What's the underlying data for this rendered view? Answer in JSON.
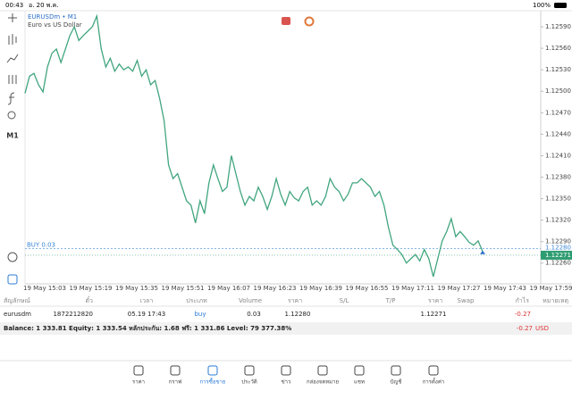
{
  "status_bar": {
    "time": "00:43",
    "date": "อ. 20 พ.ค.",
    "battery": "100%"
  },
  "chart_data": {
    "type": "line",
    "symbol": "EURUSDm • M1",
    "description": "Euro vs US Dollar",
    "timeframe": "M1",
    "color": "#41a57f",
    "values": [
      1.12497,
      1.12521,
      1.12525,
      1.12509,
      1.12499,
      1.12534,
      1.12553,
      1.12559,
      1.1254,
      1.12559,
      1.12578,
      1.1259,
      1.12571,
      1.12578,
      1.12584,
      1.1259,
      1.12605,
      1.12559,
      1.12534,
      1.12546,
      1.12528,
      1.12538,
      1.1253,
      1.12534,
      1.12528,
      1.12543,
      1.12521,
      1.1253,
      1.12509,
      1.12515,
      1.1249,
      1.12459,
      1.12397,
      1.12378,
      1.12385,
      1.12366,
      1.12347,
      1.12341,
      1.12316,
      1.12347,
      1.12329,
      1.12372,
      1.12397,
      1.12378,
      1.1236,
      1.12366,
      1.1241,
      1.12385,
      1.1236,
      1.12341,
      1.12353,
      1.12347,
      1.12366,
      1.12353,
      1.12335,
      1.12353,
      1.12378,
      1.12356,
      1.12341,
      1.1236,
      1.12351,
      1.12347,
      1.1236,
      1.12366,
      1.12341,
      1.12347,
      1.12341,
      1.12353,
      1.12378,
      1.12366,
      1.1236,
      1.12347,
      1.12356,
      1.12372,
      1.12372,
      1.12378,
      1.12372,
      1.12366,
      1.12353,
      1.1236,
      1.12341,
      1.1231,
      1.12285,
      1.12279,
      1.12272,
      1.1226,
      1.12266,
      1.12272,
      1.12263,
      1.12279,
      1.12266,
      1.12241,
      1.12266,
      1.12291,
      1.12304,
      1.12322,
      1.12297,
      1.12304,
      1.12297,
      1.12289,
      1.12285,
      1.12291,
      1.12276
    ],
    "ylim": [
      1.12231,
      1.1261
    ],
    "yticks": [
      {
        "value": 1.1259,
        "label": "1.12590"
      },
      {
        "value": 1.1256,
        "label": "1.12560"
      },
      {
        "value": 1.1253,
        "label": "1.12530"
      },
      {
        "value": 1.125,
        "label": "1.12500"
      },
      {
        "value": 1.1247,
        "label": "1.12470"
      },
      {
        "value": 1.1244,
        "label": "1.12440"
      },
      {
        "value": 1.1241,
        "label": "1.12410"
      },
      {
        "value": 1.1238,
        "label": "1.12380"
      },
      {
        "value": 1.1235,
        "label": "1.12350"
      },
      {
        "value": 1.1232,
        "label": "1.12320"
      },
      {
        "value": 1.1229,
        "label": "1.12290"
      },
      {
        "value": 1.1226,
        "label": "1.12260"
      }
    ],
    "xtick_labels": [
      "19 May 15:03",
      "19 May 15:19",
      "19 May 15:35",
      "19 May 15:51",
      "19 May 16:07",
      "19 May 16:23",
      "19 May 16:39",
      "19 May 16:55",
      "19 May 17:11",
      "19 May 17:27",
      "19 May 17:43",
      "19 May 17:59"
    ],
    "buy_line": {
      "label": "BUY 0.03",
      "value": 1.1228,
      "value_label": "1.12280"
    },
    "bid": {
      "value": 1.12271,
      "label": "1.12271"
    }
  },
  "table": {
    "headers": [
      "สัญลักษณ์",
      "ตั๋ว",
      "เวลา",
      "ประเภท",
      "Volume",
      "ราคา",
      "S/L",
      "T/P",
      "ราคา",
      "Swap",
      "กำไร",
      "หมายเหตุ"
    ],
    "row": {
      "symbol": "eurusdm",
      "ticket": "1872212820",
      "time": "05.19 17:43",
      "type": "buy",
      "volume": "0.03",
      "price": "1.12280",
      "current_price": "1.12271",
      "profit": "-0.27"
    }
  },
  "balance_bar": {
    "text": "Balance: 1 333.81 Equity: 1 333.54 หลักประกัน: 1.68 ฟรี: 1 331.86 Level: 79 377.38%",
    "profit": "-0.27",
    "currency": "USD"
  },
  "nav": {
    "items": [
      "ราคา",
      "กราฟ",
      "การซื้อขาย",
      "ประวัติ",
      "ข่าว",
      "กล่องจดหมาย",
      "แชท",
      "บัญชี",
      "การตั้งค่า"
    ],
    "active": 2
  }
}
